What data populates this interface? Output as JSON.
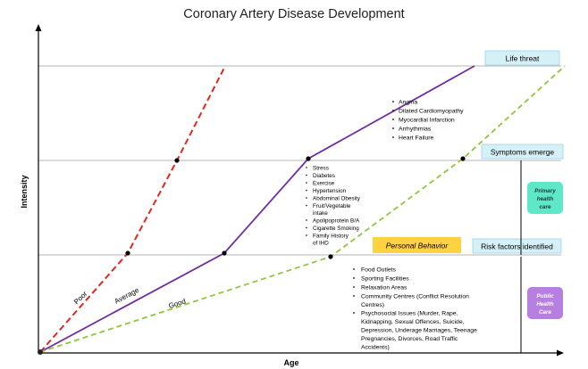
{
  "title": "Coronary Artery Disease Development",
  "axes": {
    "x_label": "Age",
    "y_label": "Intensity"
  },
  "thresholds": [
    {
      "label": "Life threat",
      "color": "#d6f0f7"
    },
    {
      "label": "Symptoms emerge",
      "color": "#d6f0f7"
    },
    {
      "label": "Risk factors identified",
      "color": "#d6f0f7"
    }
  ],
  "trajectories": [
    {
      "label": "Poor",
      "color": "#e3261f",
      "dash": "dashed"
    },
    {
      "label": "Average",
      "color": "#7030a0",
      "dash": "solid"
    },
    {
      "label": "Good",
      "color": "#8ec63f",
      "dash": "dashed"
    }
  ],
  "personal_behavior": {
    "label": "Personal Behavior",
    "color": "#ffd23f"
  },
  "symptoms_list": [
    "Angina",
    "Dilated Cardiomyopathy",
    "Myocardial Infarction",
    "Arrhythmias",
    "Heart Failure"
  ],
  "risk_factors_list": [
    "Stress",
    "Diabetes",
    "Exercise",
    "Hypertension",
    "Abdominal Obesity",
    "Fruit/Vegetable",
    "intake",
    "Apolipoprotein B/A",
    "Cigarette Smoking",
    "Family History",
    "of IHD"
  ],
  "community_list": [
    "Food Outlets",
    "Sporting Facilities",
    "Relaxation  Areas",
    "Community Centres  (Conflict Resolution",
    "Centres)",
    "Psychosocial Issues (Murder, Rape,",
    "Kidnapping,  Sexual Offences, Suicide,",
    "Depression, Underage Marriages, Teenage",
    "Pregnancies, Divorces, Road Traffic",
    "Accidents)"
  ],
  "primary_care": {
    "line1": "Primary",
    "line2": "health",
    "line3": "care",
    "color": "#5ee8c8"
  },
  "public_care": {
    "line1": "Public",
    "line2": "Health",
    "line3": "Care",
    "color": "#b77fe0"
  }
}
